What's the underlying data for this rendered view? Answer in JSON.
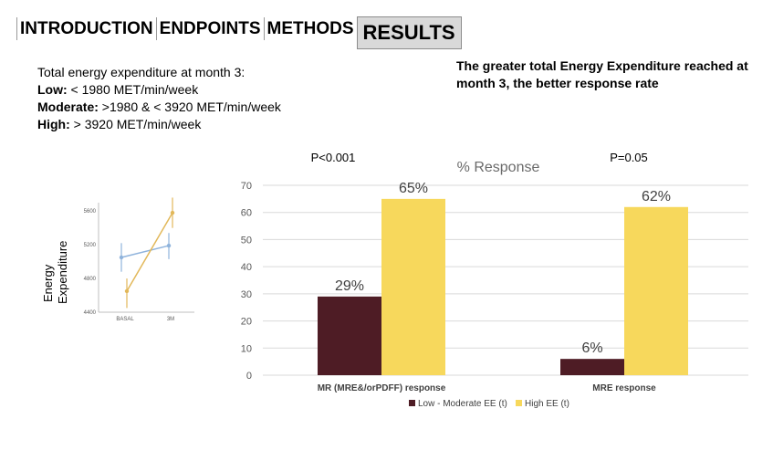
{
  "tabs": [
    {
      "label": "INTRODUCTION",
      "active": false
    },
    {
      "label": "ENDPOINTS",
      "active": false
    },
    {
      "label": "METHODS",
      "active": false
    },
    {
      "label": "RESULTS",
      "active": true
    }
  ],
  "definitions": {
    "heading": "Total energy expenditure at month 3:",
    "items": [
      {
        "term": "Low:",
        "text": " < 1980 MET/min/week"
      },
      {
        "term": "Moderate:",
        "text": " >1980 & < 3920 MET/min/week"
      },
      {
        "term": "High:",
        "text": " > 3920 MET/min/week"
      }
    ]
  },
  "headline": "The greater total Energy Expenditure reached at month 3, the better response rate",
  "colors": {
    "low_moderate": "#4e1c25",
    "high": "#f7d85c",
    "inset_blue": "#8fb3dc",
    "inset_yellow": "#e2b85a",
    "grid": "#d9d9d9",
    "axis_text": "#595959"
  },
  "chart_data": [
    {
      "type": "bar",
      "title": "% Response",
      "categories": [
        "MR (MRE&/orPDFF) response",
        "MRE response"
      ],
      "series": [
        {
          "name": "Low - Moderate  EE (t)",
          "values": [
            29,
            6
          ],
          "labels": [
            "29%",
            "6%"
          ]
        },
        {
          "name": "High EE (t)",
          "values": [
            65,
            62
          ],
          "labels": [
            "65%",
            "62%"
          ]
        }
      ],
      "ylim": [
        0,
        70
      ],
      "yticks": [
        0,
        10,
        20,
        30,
        40,
        50,
        60,
        70
      ],
      "grid": true,
      "legend_position": "bottom",
      "annotations": [
        "P<0.001",
        "P=0.05"
      ]
    },
    {
      "type": "line",
      "ylabel": "Energy Expenditure",
      "categories": [
        "BASAL",
        "3M"
      ],
      "ylim": [
        4400,
        5700
      ],
      "yticks": [
        4400,
        4800,
        5200,
        5600
      ],
      "series": [
        {
          "values": [
            5050,
            5190
          ],
          "errors": [
            [
              4880,
              5220
            ],
            [
              5030,
              5340
            ]
          ]
        },
        {
          "values": [
            4650,
            5580
          ],
          "errors": [
            [
              4450,
              4800
            ],
            [
              5400,
              5760
            ]
          ]
        }
      ]
    }
  ]
}
